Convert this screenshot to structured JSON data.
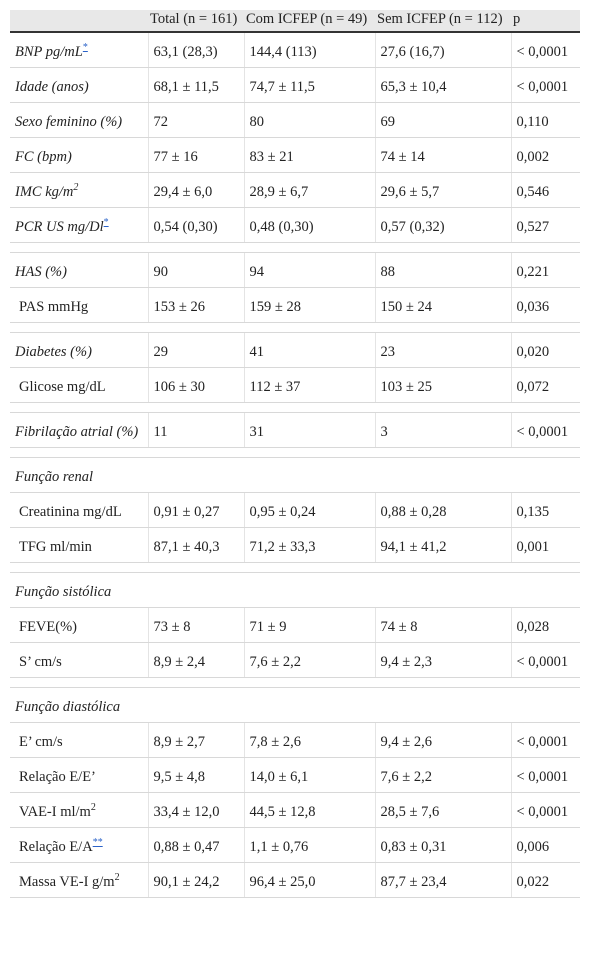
{
  "header": {
    "col0": "",
    "col1": "Total (n = 161)",
    "col2": "Com ICFEP (n = 49)",
    "col3": "Sem ICFEP (n = 112)",
    "col4": "p"
  },
  "rows": [
    {
      "label": "BNP pg/mL",
      "fn": "*",
      "total": "63,1 (28,3)",
      "com": "144,4 (113)",
      "sem": "27,6 (16,7)",
      "p": "< 0,0001"
    },
    {
      "label": "Idade (anos)",
      "total": "68,1 ± 11,5",
      "com": "74,7 ± 11,5",
      "sem": "65,3 ± 10,4",
      "p": "< 0,0001"
    },
    {
      "label": "Sexo feminino (%)",
      "total": "72",
      "com": "80",
      "sem": "69",
      "p": "0,110"
    },
    {
      "label": "FC (bpm)",
      "total": "77 ± 16",
      "com": "83 ± 21",
      "sem": "74 ± 14",
      "p": "0,002"
    },
    {
      "label": "IMC kg/m",
      "sup": "2",
      "total": "29,4 ± 6,0",
      "com": "28,9 ± 6,7",
      "sem": "29,6 ± 5,7",
      "p": "0,546"
    },
    {
      "label": "PCR US mg/Dl",
      "fn": "*",
      "total": "0,54 (0,30)",
      "com": "0,48 (0,30)",
      "sem": "0,57 (0,32)",
      "p": "0,527"
    },
    {
      "label": "HAS (%)",
      "total": "90",
      "com": "94",
      "sem": "88",
      "p": "0,221"
    },
    {
      "label": "PAS mmHg",
      "total": "153 ± 26",
      "com": "159 ± 28",
      "sem": "150 ± 24",
      "p": "0,036"
    },
    {
      "label": "Diabetes (%)",
      "total": "29",
      "com": "41",
      "sem": "23",
      "p": "0,020"
    },
    {
      "label": "Glicose mg/dL",
      "total": "106 ± 30",
      "com": "112 ± 37",
      "sem": "103 ± 25",
      "p": "0,072"
    },
    {
      "label": "Fibrilação atrial (%)",
      "total": "11",
      "com": "31",
      "sem": "3",
      "p": "< 0,0001"
    },
    {
      "label": "Função renal"
    },
    {
      "label": "Creatinina mg/dL",
      "total": "0,91 ± 0,27",
      "com": "0,95 ± 0,24",
      "sem": "0,88 ± 0,28",
      "p": "0,135"
    },
    {
      "label": "TFG ml/min",
      "total": "87,1 ± 40,3",
      "com": "71,2 ± 33,3",
      "sem": "94,1 ± 41,2",
      "p": "0,001"
    },
    {
      "label": "Função sistólica"
    },
    {
      "label": "FEVE(%)",
      "total": "73 ± 8",
      "com": "71 ± 9",
      "sem": "74 ± 8",
      "p": "0,028"
    },
    {
      "label": "S’ cm/s",
      "total": "8,9 ± 2,4",
      "com": "7,6 ± 2,2",
      "sem": "9,4 ± 2,3",
      "p": "< 0,0001"
    },
    {
      "label": "Função diastólica"
    },
    {
      "label": "E’ cm/s",
      "total": "8,9 ± 2,7",
      "com": "7,8 ± 2,6",
      "sem": "9,4 ± 2,6",
      "p": "< 0,0001"
    },
    {
      "label": "Relação E/E’",
      "total": "9,5 ± 4,8",
      "com": "14,0 ± 6,1",
      "sem": "7,6 ± 2,2",
      "p": "< 0,0001"
    },
    {
      "label": "VAE-I ml/m",
      "sup": "2",
      "total": "33,4 ± 12,0",
      "com": "44,5 ± 12,8",
      "sem": "28,5 ± 7,6",
      "p": "< 0,0001"
    },
    {
      "label": "Relação E/A",
      "fn": "**",
      "total": "0,88 ± 0,47",
      "com": "1,1 ± 0,76",
      "sem": "0,83 ± 0,31",
      "p": "0,006"
    },
    {
      "label": "Massa VE-I g/m",
      "sup": "2",
      "total": "90,1 ± 24,2",
      "com": "96,4 ± 25,0",
      "sem": "87,7 ± 23,4",
      "p": "0,022"
    }
  ]
}
